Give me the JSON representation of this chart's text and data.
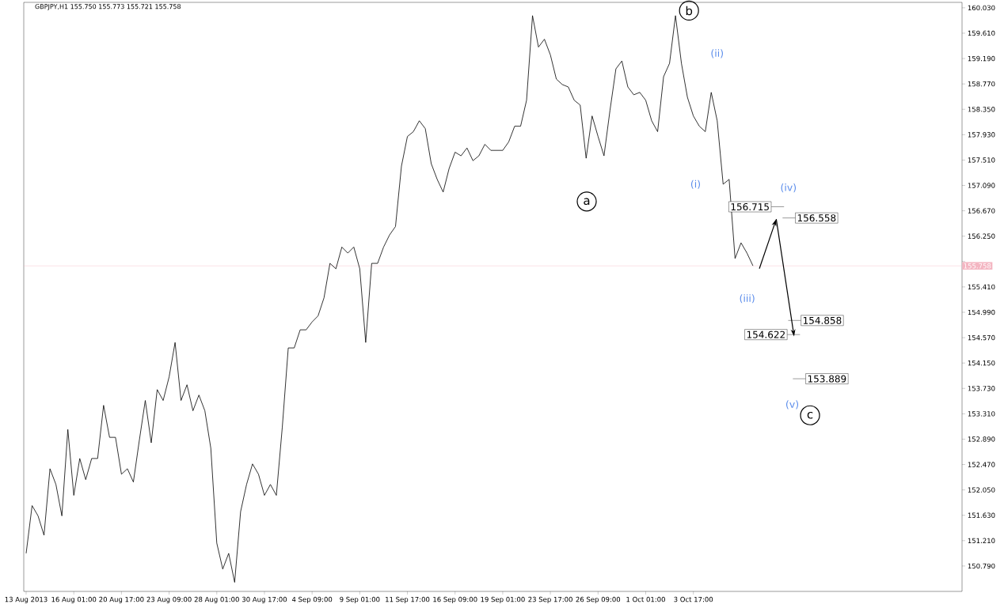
{
  "chart_data": {
    "type": "line",
    "title": "GBPJPY,H1  155.750 155.773 155.721 155.758",
    "categories": [
      "13 Aug 2013",
      null,
      null,
      null,
      null,
      null,
      null,
      null,
      "16 Aug 01:00",
      null,
      null,
      null,
      null,
      null,
      null,
      null,
      "20 Aug 17:00",
      null,
      null,
      null,
      null,
      null,
      null,
      null,
      "23 Aug 09:00",
      null,
      null,
      null,
      null,
      null,
      null,
      null,
      "28 Aug 01:00",
      null,
      null,
      null,
      null,
      null,
      null,
      null,
      "30 Aug 17:00",
      null,
      null,
      null,
      null,
      null,
      null,
      null,
      "4 Sep 09:00",
      null,
      null,
      null,
      null,
      null,
      null,
      null,
      "9 Sep 01:00",
      null,
      null,
      null,
      null,
      null,
      null,
      null,
      "11 Sep 17:00",
      null,
      null,
      null,
      null,
      null,
      null,
      null,
      "16 Sep 09:00",
      null,
      null,
      null,
      null,
      null,
      null,
      null,
      "19 Sep 01:00",
      null,
      null,
      null,
      null,
      null,
      null,
      null,
      "23 Sep 17:00",
      null,
      null,
      null,
      null,
      null,
      null,
      null,
      "26 Sep 09:00",
      null,
      null,
      null,
      null,
      null,
      null,
      null,
      "1 Oct 01:00",
      null,
      null,
      null,
      null,
      null,
      null,
      null,
      "3 Oct 17:00",
      null,
      null,
      null,
      null,
      null,
      null,
      null,
      null,
      null,
      null,
      null,
      null,
      null,
      null,
      null,
      null,
      null,
      null,
      null,
      null,
      null,
      null,
      null,
      null,
      null,
      null,
      null,
      null,
      null,
      null,
      null,
      null,
      null,
      null,
      null,
      null,
      null,
      null,
      null,
      null,
      null,
      null,
      null,
      null,
      null
    ],
    "series": [
      {
        "color": "#000000",
        "values": [
          151.0,
          151.79,
          151.62,
          151.3,
          152.4,
          152.14,
          151.62,
          153.05,
          151.96,
          152.57,
          152.22,
          152.57,
          152.57,
          153.45,
          152.92,
          152.92,
          152.31,
          152.4,
          152.18,
          152.87,
          153.53,
          152.83,
          153.71,
          153.53,
          153.92,
          154.49,
          153.53,
          153.79,
          153.36,
          153.62,
          153.36,
          152.74,
          151.17,
          150.74,
          151.0,
          150.52,
          151.69,
          152.14,
          152.48,
          152.31,
          151.96,
          152.14,
          151.96,
          153.09,
          154.4,
          154.4,
          154.7,
          154.7,
          154.83,
          154.93,
          155.23,
          155.8,
          155.71,
          156.07,
          155.97,
          156.07,
          155.71,
          154.49,
          155.8,
          155.8,
          156.07,
          156.27,
          156.41,
          157.41,
          157.9,
          157.98,
          158.16,
          158.03,
          157.45,
          157.19,
          156.98,
          157.37,
          157.64,
          157.58,
          157.71,
          157.5,
          157.58,
          157.77,
          157.67,
          157.67,
          157.67,
          157.81,
          158.07,
          158.07,
          158.5,
          159.9,
          159.38,
          159.51,
          159.25,
          158.85,
          158.76,
          158.72,
          158.5,
          158.42,
          157.54,
          158.24,
          157.9,
          157.58,
          158.33,
          159.02,
          159.15,
          158.72,
          158.59,
          158.63,
          158.5,
          158.16,
          157.98,
          158.89,
          159.11,
          159.9,
          159.11,
          158.55,
          158.24,
          158.07,
          157.98,
          158.63,
          158.16,
          157.11,
          157.19,
          155.88,
          156.14,
          155.97,
          155.76,
          null,
          null,
          null,
          null,
          null,
          null,
          null,
          null,
          null,
          null,
          null,
          null,
          null,
          null,
          null,
          null,
          null,
          null,
          null,
          null,
          null,
          null,
          null,
          null,
          null,
          null,
          null,
          null,
          null,
          null,
          null,
          null,
          null,
          null,
          null
        ]
      }
    ],
    "ylim": [
      150.37,
      160.12
    ],
    "yticks": [
      {
        "value": 150.79,
        "label": "150.790"
      },
      {
        "value": 151.21,
        "label": "151.210"
      },
      {
        "value": 151.63,
        "label": "151.630"
      },
      {
        "value": 152.05,
        "label": "152.050"
      },
      {
        "value": 152.47,
        "label": "152.470"
      },
      {
        "value": 152.89,
        "label": "152.890"
      },
      {
        "value": 153.31,
        "label": "153.310"
      },
      {
        "value": 153.73,
        "label": "153.730"
      },
      {
        "value": 154.15,
        "label": "154.150"
      },
      {
        "value": 154.57,
        "label": "154.570"
      },
      {
        "value": 154.99,
        "label": "154.990"
      },
      {
        "value": 155.41,
        "label": "155.410"
      },
      {
        "value": 155.83,
        "label": null
      },
      {
        "value": 156.25,
        "label": "156.250"
      },
      {
        "value": 156.67,
        "label": "156.670"
      },
      {
        "value": 157.09,
        "label": "157.090"
      },
      {
        "value": 157.51,
        "label": "157.510"
      },
      {
        "value": 157.93,
        "label": "157.930"
      },
      {
        "value": 158.35,
        "label": "158.350"
      },
      {
        "value": 158.77,
        "label": "158.770"
      },
      {
        "value": 159.19,
        "label": "159.190"
      },
      {
        "value": 159.61,
        "label": "159.610"
      },
      {
        "value": 160.03,
        "label": "160.030"
      }
    ],
    "ref_lines": [
      {
        "axis": "y",
        "value": 155.758,
        "label": "155.758",
        "color": "#f4b6c2"
      }
    ],
    "annotations": [
      "a",
      "b",
      "c",
      "(i)",
      "(ii)",
      "(iii)",
      "(iv)",
      "(v)",
      "156.715",
      "156.558",
      "154.858",
      "154.622",
      "153.889"
    ],
    "grid": false,
    "marker": "none",
    "line_style": "solid"
  }
}
